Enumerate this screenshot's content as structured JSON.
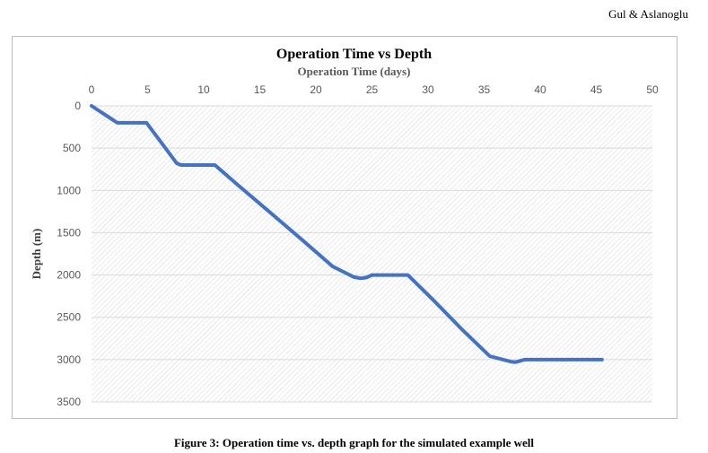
{
  "header": {
    "running_head": "Gul & Aslanoglu"
  },
  "caption": "Figure 3: Operation time vs. depth graph for the simulated example well",
  "chart_data": {
    "type": "line",
    "title": "Operation Time vs Depth",
    "xlabel": "Operation Time (days)",
    "ylabel": "Depth (m)",
    "x_axis_position": "top",
    "y_axis_inverted": true,
    "xlim": [
      0,
      50
    ],
    "ylim": [
      0,
      3500
    ],
    "x_ticks": [
      0,
      5,
      10,
      15,
      20,
      25,
      30,
      35,
      40,
      45,
      50
    ],
    "y_ticks": [
      0,
      500,
      1000,
      1500,
      2000,
      2500,
      3000,
      3500
    ],
    "grid": "horizontal",
    "plot_background": "diagonal hatch",
    "line_color": "#4472C4",
    "series": [
      {
        "x": [
          0,
          2.3,
          4.9,
          7.6,
          8.0,
          11.0,
          13.0,
          16.0,
          19.0,
          21.5,
          23.4,
          24.0,
          24.5,
          25.0,
          28.2,
          30.5,
          33.0,
          35.5,
          37.4,
          37.8,
          38.1,
          38.6,
          45.5
        ],
        "y": [
          0,
          200,
          200,
          680,
          700,
          700,
          930,
          1270,
          1610,
          1900,
          2025,
          2040,
          2030,
          2000,
          2000,
          2300,
          2640,
          2960,
          3025,
          3030,
          3020,
          3000,
          3000
        ]
      }
    ]
  }
}
